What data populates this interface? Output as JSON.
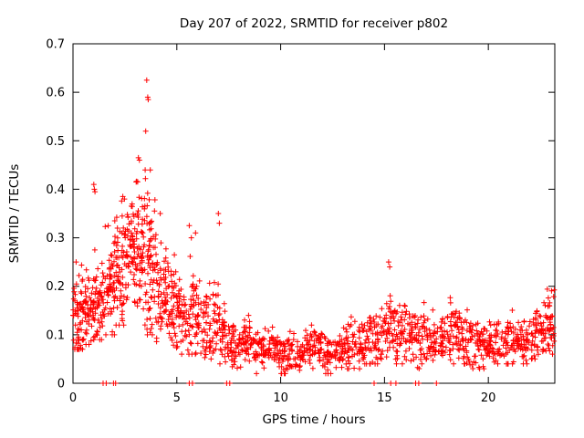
{
  "chart_data": {
    "type": "scatter",
    "title": "Day 207 of 2022, SRMTID for receiver p802",
    "xlabel": "GPS time / hours",
    "ylabel": "SRMTID / TECUs",
    "xlim": [
      0,
      23.2
    ],
    "ylim": [
      0,
      0.7
    ],
    "x_ticks": [
      0,
      5,
      10,
      15,
      20
    ],
    "y_ticks": [
      0,
      0.1,
      0.2,
      0.3,
      0.4,
      0.5,
      0.6,
      0.7
    ],
    "grid": false,
    "legend": "none",
    "marker": "plus",
    "marker_color": "#ff0000",
    "marker_half_size": 3,
    "seed": 207,
    "series_description": "SRMTID values vs GPS time; dense band rising to a peak of ~0.62 TECUs near hour 3.6, decaying to a quiet band of 0.05-0.15 TECUs from hour 8 onward",
    "segments": [
      [
        0,
        0.5,
        60,
        0.14,
        0.045,
        0.07,
        0.27
      ],
      [
        0.5,
        1,
        50,
        0.15,
        0.04,
        0.08,
        0.28
      ],
      [
        1,
        1.5,
        55,
        0.17,
        0.05,
        0.09,
        0.32
      ],
      [
        1.5,
        2,
        55,
        0.2,
        0.06,
        0.1,
        0.38
      ],
      [
        2,
        2.5,
        60,
        0.24,
        0.06,
        0.12,
        0.38
      ],
      [
        2.5,
        3,
        60,
        0.27,
        0.06,
        0.13,
        0.4
      ],
      [
        3,
        3.5,
        65,
        0.27,
        0.07,
        0.12,
        0.44
      ],
      [
        3.5,
        4,
        65,
        0.25,
        0.08,
        0.1,
        0.47
      ],
      [
        4,
        4.5,
        55,
        0.19,
        0.05,
        0.08,
        0.35
      ],
      [
        4.5,
        5,
        50,
        0.16,
        0.045,
        0.07,
        0.3
      ],
      [
        5,
        5.5,
        45,
        0.14,
        0.04,
        0.06,
        0.25
      ],
      [
        5.5,
        6,
        45,
        0.15,
        0.05,
        0.06,
        0.3
      ],
      [
        6,
        6.5,
        40,
        0.12,
        0.035,
        0.05,
        0.22
      ],
      [
        6.5,
        7,
        40,
        0.12,
        0.04,
        0.05,
        0.25
      ],
      [
        7,
        7.5,
        40,
        0.1,
        0.03,
        0.04,
        0.2
      ],
      [
        7.5,
        8,
        40,
        0.08,
        0.025,
        0.03,
        0.15
      ],
      [
        8,
        9,
        70,
        0.08,
        0.025,
        0.02,
        0.14
      ],
      [
        9,
        10,
        70,
        0.07,
        0.02,
        0.02,
        0.13
      ],
      [
        10,
        11,
        70,
        0.06,
        0.02,
        0.02,
        0.12
      ],
      [
        11,
        12,
        70,
        0.07,
        0.02,
        0.03,
        0.13
      ],
      [
        12,
        13,
        70,
        0.06,
        0.02,
        0.02,
        0.14
      ],
      [
        13,
        14,
        70,
        0.08,
        0.025,
        0.03,
        0.15
      ],
      [
        14,
        15,
        70,
        0.09,
        0.03,
        0.04,
        0.17
      ],
      [
        15,
        15.5,
        40,
        0.11,
        0.035,
        0.04,
        0.22
      ],
      [
        15.5,
        16,
        40,
        0.1,
        0.03,
        0.04,
        0.2
      ],
      [
        16,
        17,
        70,
        0.09,
        0.03,
        0.03,
        0.18
      ],
      [
        17,
        18,
        70,
        0.09,
        0.025,
        0.04,
        0.16
      ],
      [
        18,
        18.5,
        40,
        0.1,
        0.035,
        0.04,
        0.2
      ],
      [
        18.5,
        19,
        40,
        0.09,
        0.03,
        0.04,
        0.18
      ],
      [
        19,
        20,
        70,
        0.08,
        0.025,
        0.03,
        0.15
      ],
      [
        20,
        21,
        70,
        0.08,
        0.025,
        0.04,
        0.15
      ],
      [
        21,
        22,
        70,
        0.09,
        0.025,
        0.04,
        0.16
      ],
      [
        22,
        22.7,
        55,
        0.1,
        0.03,
        0.05,
        0.2
      ],
      [
        22.7,
        23.2,
        45,
        0.12,
        0.035,
        0.06,
        0.21
      ]
    ],
    "outlier_points": [
      [
        0.15,
        0.25
      ],
      [
        1.0,
        0.41
      ],
      [
        1.03,
        0.4
      ],
      [
        1.06,
        0.395
      ],
      [
        2.4,
        0.385
      ],
      [
        3.15,
        0.465
      ],
      [
        3.2,
        0.46
      ],
      [
        3.5,
        0.52
      ],
      [
        3.55,
        0.625
      ],
      [
        3.6,
        0.59
      ],
      [
        3.62,
        0.585
      ],
      [
        3.72,
        0.44
      ],
      [
        4.2,
        0.35
      ],
      [
        5.6,
        0.325
      ],
      [
        5.7,
        0.3
      ],
      [
        5.9,
        0.31
      ],
      [
        7.0,
        0.35
      ],
      [
        7.05,
        0.33
      ],
      [
        15.2,
        0.25
      ],
      [
        15.25,
        0.24
      ]
    ],
    "zero_markers": [
      1.45,
      1.6,
      1.95,
      2.05,
      5.6,
      5.75,
      7.4,
      7.55,
      14.5,
      15.3,
      15.55,
      16.5,
      16.65,
      17.5
    ]
  }
}
